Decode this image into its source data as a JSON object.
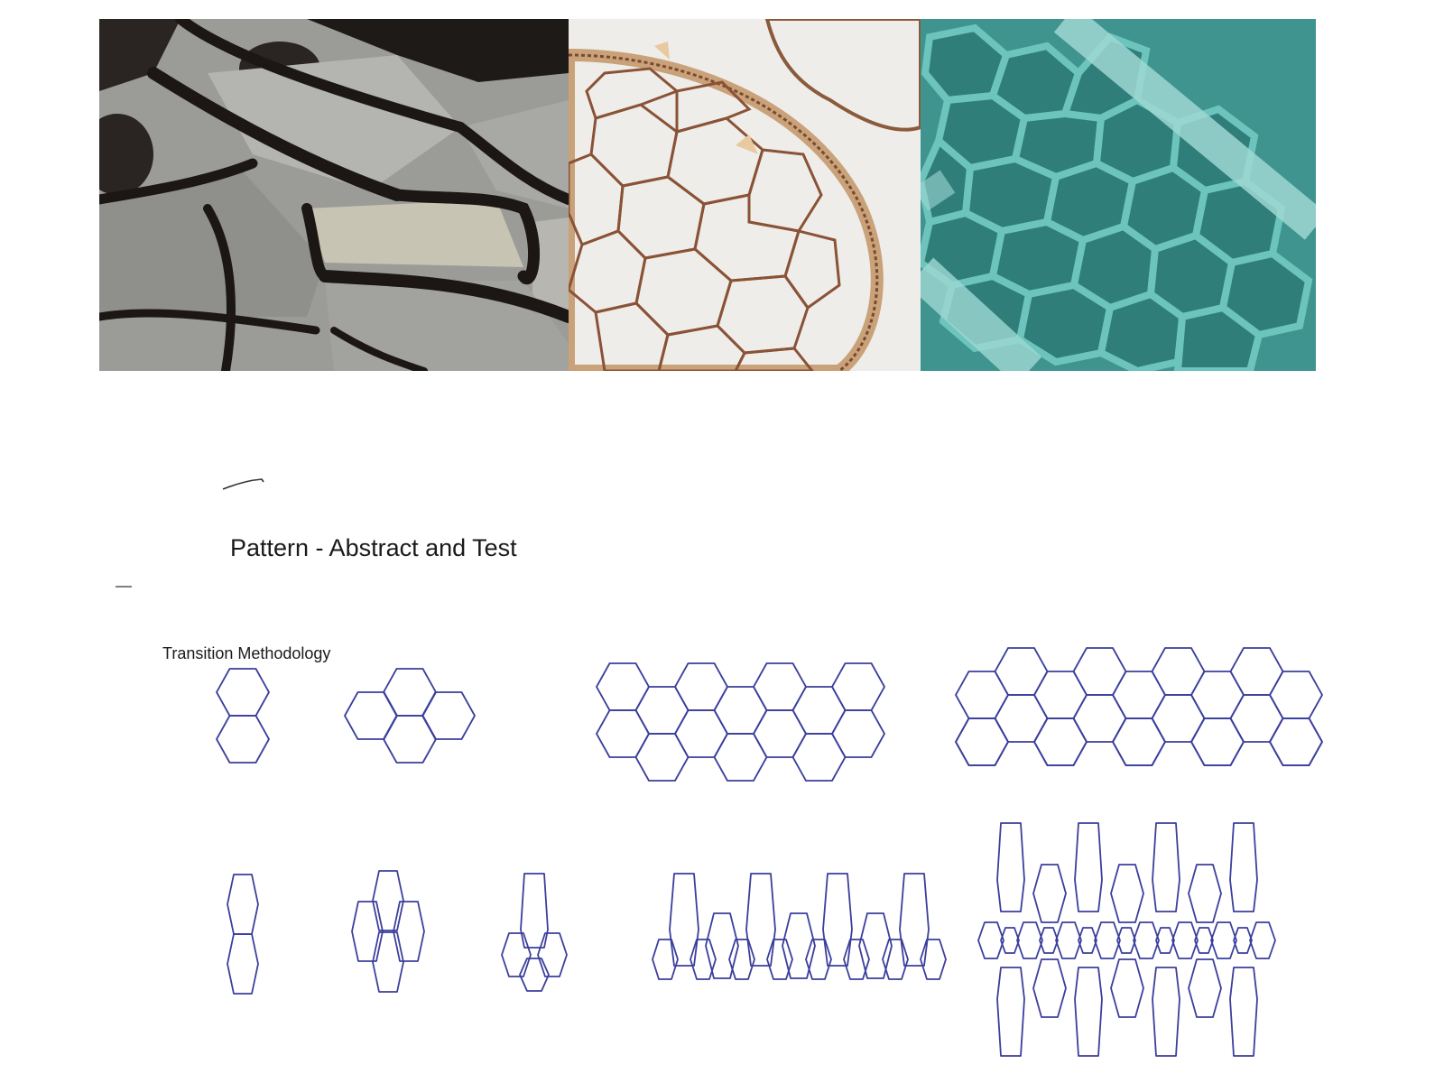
{
  "title": "Pattern - Abstract and Test",
  "subtitle": "Transition Methodology",
  "photos": [
    {
      "name": "butterfly-wing-photo",
      "subject": "wing-veins"
    },
    {
      "name": "laser-cut-lace-photo",
      "subject": "cut-lattice"
    },
    {
      "name": "teal-cell-structure-photo",
      "subject": "cell-web"
    }
  ],
  "colors": {
    "pattern_stroke": "#3b3f9c",
    "text": "#1a1a1a",
    "background": "#ffffff"
  }
}
